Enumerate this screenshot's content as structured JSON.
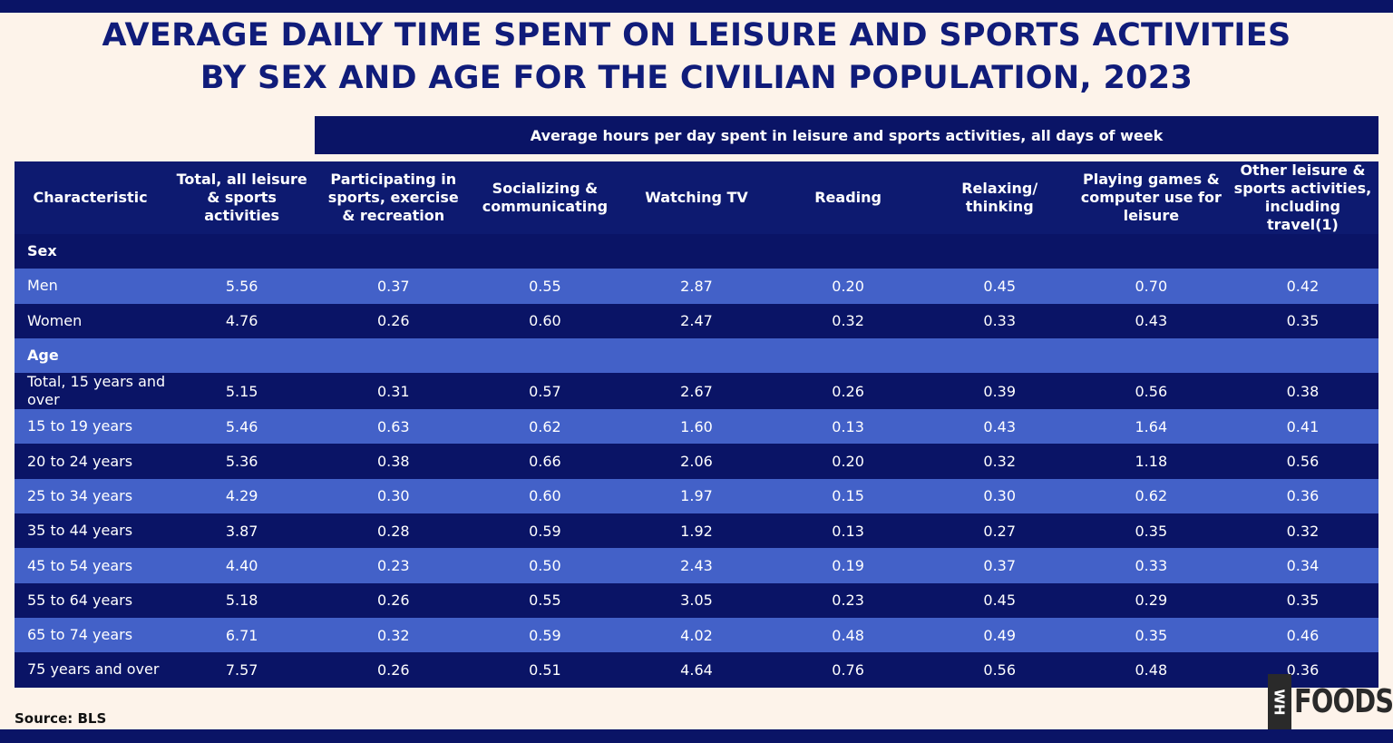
{
  "title_line1": "AVERAGE DAILY TIME SPENT ON LEISURE AND SPORTS ACTIVITIES",
  "title_line2": "BY SEX AND AGE FOR THE CIVILIAN POPULATION, 2023",
  "super_header": "Average hours per day spent in leisure and sports activities, all days of week",
  "source": "Source: BLS",
  "logo": {
    "mark": "WH",
    "text": "FOODS"
  },
  "colors": {
    "navy": "#0a1466",
    "row_light": "#4361c8",
    "background": "#fdf3ea",
    "title": "#101c7a"
  },
  "chart_data": {
    "type": "table",
    "columns": [
      "Characteristic",
      "Total, all leisure & sports activities",
      "Participating in sports, exercise & recreation",
      "Socializing & communicating",
      "Watching TV",
      "Reading",
      "Relaxing/ thinking",
      "Playing games & computer use for leisure",
      "Other leisure & sports activities, including travel(1)"
    ],
    "rows": [
      {
        "group": true,
        "label": "Sex",
        "values": []
      },
      {
        "label": "Men",
        "values": [
          "5.56",
          "0.37",
          "0.55",
          "2.87",
          "0.20",
          "0.45",
          "0.70",
          "0.42"
        ]
      },
      {
        "label": "Women",
        "values": [
          "4.76",
          "0.26",
          "0.60",
          "2.47",
          "0.32",
          "0.33",
          "0.43",
          "0.35"
        ]
      },
      {
        "group": true,
        "label": "Age",
        "values": []
      },
      {
        "label": "Total, 15 years and over",
        "values": [
          "5.15",
          "0.31",
          "0.57",
          "2.67",
          "0.26",
          "0.39",
          "0.56",
          "0.38"
        ]
      },
      {
        "label": "15 to 19 years",
        "values": [
          "5.46",
          "0.63",
          "0.62",
          "1.60",
          "0.13",
          "0.43",
          "1.64",
          "0.41"
        ]
      },
      {
        "label": "20 to 24 years",
        "values": [
          "5.36",
          "0.38",
          "0.66",
          "2.06",
          "0.20",
          "0.32",
          "1.18",
          "0.56"
        ]
      },
      {
        "label": "25 to 34 years",
        "values": [
          "4.29",
          "0.30",
          "0.60",
          "1.97",
          "0.15",
          "0.30",
          "0.62",
          "0.36"
        ]
      },
      {
        "label": "35 to 44 years",
        "values": [
          "3.87",
          "0.28",
          "0.59",
          "1.92",
          "0.13",
          "0.27",
          "0.35",
          "0.32"
        ]
      },
      {
        "label": "45 to 54 years",
        "values": [
          "4.40",
          "0.23",
          "0.50",
          "2.43",
          "0.19",
          "0.37",
          "0.33",
          "0.34"
        ]
      },
      {
        "label": "55 to 64 years",
        "values": [
          "5.18",
          "0.26",
          "0.55",
          "3.05",
          "0.23",
          "0.45",
          "0.29",
          "0.35"
        ]
      },
      {
        "label": "65 to 74 years",
        "values": [
          "6.71",
          "0.32",
          "0.59",
          "4.02",
          "0.48",
          "0.49",
          "0.35",
          "0.46"
        ]
      },
      {
        "label": "75 years and over",
        "values": [
          "7.57",
          "0.26",
          "0.51",
          "4.64",
          "0.76",
          "0.56",
          "0.48",
          "0.36"
        ]
      }
    ]
  }
}
